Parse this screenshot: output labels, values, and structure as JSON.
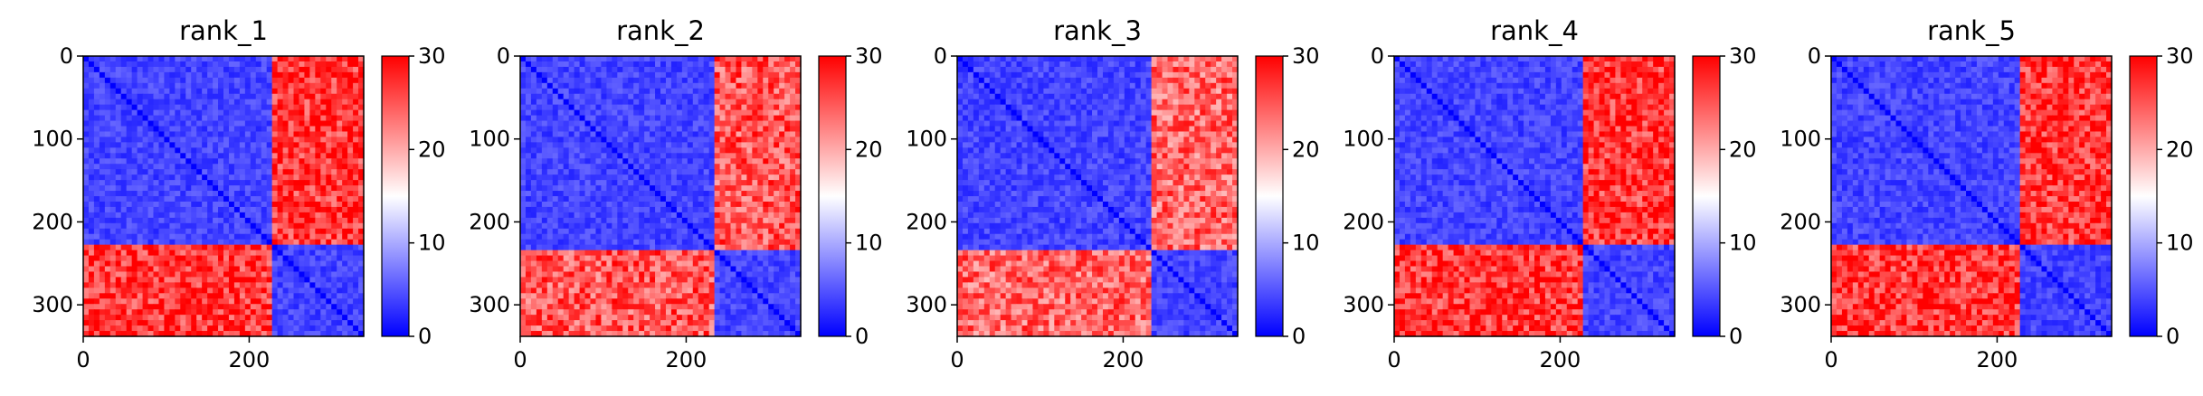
{
  "chart_data": [
    {
      "type": "heatmap",
      "title": "rank_1",
      "xlabel": "",
      "ylabel": "",
      "xlim": [
        0,
        338
      ],
      "ylim": [
        338,
        0
      ],
      "x_ticks": [
        0,
        200
      ],
      "y_ticks": [
        0,
        100,
        200,
        300
      ],
      "colorbar": {
        "min": 0,
        "max": 30,
        "ticks": [
          0,
          10,
          20,
          30
        ],
        "colormap": "bwr"
      },
      "domains": [
        [
          0,
          230
        ],
        [
          230,
          338
        ]
      ],
      "within_domain_value": 2,
      "between_domain_value": 27
    },
    {
      "type": "heatmap",
      "title": "rank_2",
      "xlabel": "",
      "ylabel": "",
      "xlim": [
        0,
        338
      ],
      "ylim": [
        338,
        0
      ],
      "x_ticks": [
        0,
        200
      ],
      "y_ticks": [
        0,
        100,
        200,
        300
      ],
      "colorbar": {
        "min": 0,
        "max": 30,
        "ticks": [
          0,
          10,
          20,
          30
        ],
        "colormap": "bwr"
      },
      "domains": [
        [
          0,
          235
        ],
        [
          235,
          338
        ]
      ],
      "within_domain_value": 2,
      "between_domain_value": 25
    },
    {
      "type": "heatmap",
      "title": "rank_3",
      "xlabel": "",
      "ylabel": "",
      "xlim": [
        0,
        338
      ],
      "ylim": [
        338,
        0
      ],
      "x_ticks": [
        0,
        200
      ],
      "y_ticks": [
        0,
        100,
        200,
        300
      ],
      "colorbar": {
        "min": 0,
        "max": 30,
        "ticks": [
          0,
          10,
          20,
          30
        ],
        "colormap": "bwr"
      },
      "domains": [
        [
          0,
          235
        ],
        [
          235,
          338
        ]
      ],
      "within_domain_value": 2,
      "between_domain_value": 24
    },
    {
      "type": "heatmap",
      "title": "rank_4",
      "xlabel": "",
      "ylabel": "",
      "xlim": [
        0,
        338
      ],
      "ylim": [
        338,
        0
      ],
      "x_ticks": [
        0,
        200
      ],
      "y_ticks": [
        0,
        100,
        200,
        300
      ],
      "colorbar": {
        "min": 0,
        "max": 30,
        "ticks": [
          0,
          10,
          20,
          30
        ],
        "colormap": "bwr"
      },
      "domains": [
        [
          0,
          230
        ],
        [
          230,
          338
        ]
      ],
      "within_domain_value": 2,
      "between_domain_value": 27
    },
    {
      "type": "heatmap",
      "title": "rank_5",
      "xlabel": "",
      "ylabel": "",
      "xlim": [
        0,
        338
      ],
      "ylim": [
        338,
        0
      ],
      "x_ticks": [
        0,
        200
      ],
      "y_ticks": [
        0,
        100,
        200,
        300
      ],
      "colorbar": {
        "min": 0,
        "max": 30,
        "ticks": [
          0,
          10,
          20,
          30
        ],
        "colormap": "bwr"
      },
      "domains": [
        [
          0,
          230
        ],
        [
          230,
          338
        ]
      ],
      "within_domain_value": 2,
      "between_domain_value": 27
    }
  ]
}
